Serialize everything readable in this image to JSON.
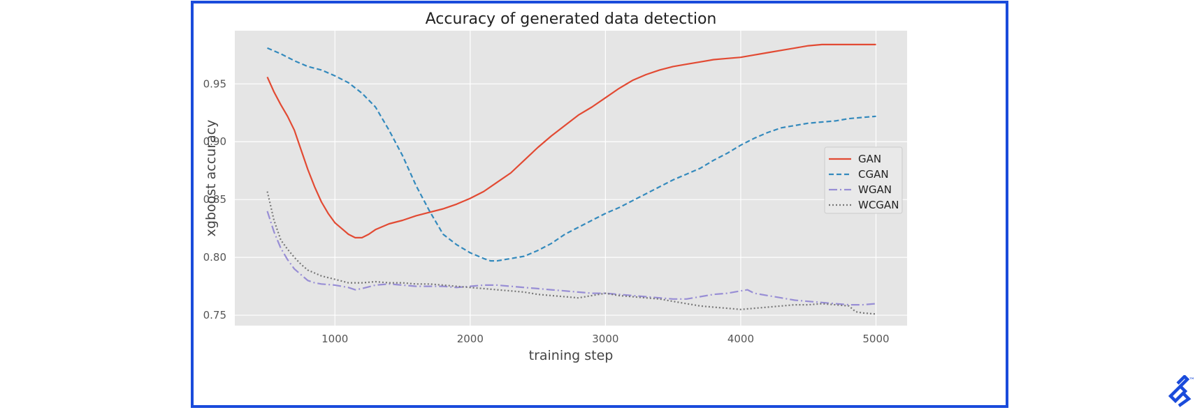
{
  "chart_data": {
    "type": "line",
    "title": "Accuracy of generated data detection",
    "xlabel": "training step",
    "ylabel": "xgboost accuracy",
    "xlim": [
      260,
      5230
    ],
    "ylim": [
      0.741,
      0.996
    ],
    "xticks": [
      1000,
      2000,
      3000,
      4000,
      5000
    ],
    "yticks": [
      0.75,
      0.8,
      0.85,
      0.9,
      0.95
    ],
    "ytick_labels": [
      "0.75",
      "0.80",
      "0.85",
      "0.90",
      "0.95"
    ],
    "grid": true,
    "legend_position": "center-right",
    "series": [
      {
        "name": "GAN",
        "color": "#e24a33",
        "style": "solid",
        "x": [
          500,
          550,
          600,
          650,
          700,
          750,
          800,
          850,
          900,
          950,
          1000,
          1050,
          1100,
          1150,
          1200,
          1250,
          1300,
          1400,
          1500,
          1600,
          1700,
          1800,
          1900,
          2000,
          2100,
          2200,
          2300,
          2400,
          2500,
          2600,
          2700,
          2800,
          2900,
          3000,
          3100,
          3200,
          3300,
          3400,
          3500,
          3600,
          3700,
          3800,
          3900,
          4000,
          4100,
          4200,
          4300,
          4400,
          4500,
          4600,
          4700,
          4800,
          4900,
          5000
        ],
        "y": [
          0.956,
          0.943,
          0.932,
          0.922,
          0.91,
          0.893,
          0.876,
          0.861,
          0.848,
          0.838,
          0.83,
          0.825,
          0.82,
          0.817,
          0.817,
          0.82,
          0.824,
          0.829,
          0.832,
          0.836,
          0.839,
          0.842,
          0.846,
          0.851,
          0.857,
          0.865,
          0.873,
          0.884,
          0.895,
          0.905,
          0.914,
          0.923,
          0.93,
          0.938,
          0.946,
          0.953,
          0.958,
          0.962,
          0.965,
          0.967,
          0.969,
          0.971,
          0.972,
          0.973,
          0.975,
          0.977,
          0.979,
          0.981,
          0.983,
          0.984,
          0.984,
          0.984,
          0.984,
          0.984
        ]
      },
      {
        "name": "CGAN",
        "color": "#348abd",
        "style": "dashed",
        "x": [
          500,
          600,
          700,
          800,
          900,
          1000,
          1100,
          1200,
          1300,
          1400,
          1500,
          1600,
          1700,
          1800,
          1900,
          2000,
          2100,
          2150,
          2200,
          2300,
          2400,
          2500,
          2600,
          2700,
          2800,
          2900,
          3000,
          3100,
          3200,
          3300,
          3400,
          3500,
          3600,
          3700,
          3800,
          3900,
          4000,
          4100,
          4200,
          4300,
          4400,
          4500,
          4600,
          4700,
          4800,
          4900,
          5000
        ],
        "y": [
          0.981,
          0.976,
          0.97,
          0.965,
          0.962,
          0.957,
          0.951,
          0.942,
          0.93,
          0.91,
          0.888,
          0.862,
          0.84,
          0.82,
          0.811,
          0.804,
          0.799,
          0.797,
          0.797,
          0.799,
          0.801,
          0.806,
          0.812,
          0.82,
          0.826,
          0.832,
          0.838,
          0.843,
          0.849,
          0.855,
          0.861,
          0.867,
          0.872,
          0.877,
          0.884,
          0.89,
          0.897,
          0.903,
          0.908,
          0.912,
          0.914,
          0.916,
          0.917,
          0.918,
          0.92,
          0.921,
          0.922
        ]
      },
      {
        "name": "WGAN",
        "color": "#988ed5",
        "style": "dashdot",
        "x": [
          500,
          550,
          600,
          650,
          700,
          750,
          800,
          850,
          900,
          1000,
          1100,
          1150,
          1200,
          1300,
          1400,
          1500,
          1600,
          1700,
          1800,
          1900,
          2000,
          2100,
          2200,
          2300,
          2400,
          2500,
          2600,
          2700,
          2800,
          2900,
          3000,
          3100,
          3200,
          3300,
          3400,
          3500,
          3600,
          3700,
          3800,
          3900,
          4000,
          4050,
          4100,
          4200,
          4300,
          4400,
          4500,
          4600,
          4700,
          4800,
          4900,
          5000
        ],
        "y": [
          0.84,
          0.822,
          0.808,
          0.798,
          0.79,
          0.785,
          0.78,
          0.778,
          0.777,
          0.776,
          0.774,
          0.772,
          0.773,
          0.776,
          0.777,
          0.776,
          0.775,
          0.775,
          0.775,
          0.774,
          0.775,
          0.776,
          0.776,
          0.775,
          0.774,
          0.773,
          0.772,
          0.771,
          0.77,
          0.769,
          0.769,
          0.768,
          0.767,
          0.766,
          0.765,
          0.764,
          0.764,
          0.766,
          0.768,
          0.769,
          0.771,
          0.772,
          0.769,
          0.767,
          0.765,
          0.763,
          0.762,
          0.761,
          0.76,
          0.759,
          0.759,
          0.76
        ]
      },
      {
        "name": "WCGAN",
        "color": "#777777",
        "style": "dotted",
        "x": [
          500,
          550,
          600,
          650,
          700,
          750,
          800,
          900,
          1000,
          1100,
          1200,
          1300,
          1400,
          1500,
          1600,
          1700,
          1800,
          1900,
          2000,
          2100,
          2200,
          2300,
          2400,
          2500,
          2600,
          2700,
          2800,
          2900,
          3000,
          3100,
          3200,
          3300,
          3400,
          3500,
          3600,
          3700,
          3800,
          3900,
          4000,
          4100,
          4200,
          4300,
          4400,
          4500,
          4600,
          4700,
          4800,
          4850,
          4900,
          5000
        ],
        "y": [
          0.857,
          0.832,
          0.815,
          0.807,
          0.8,
          0.794,
          0.789,
          0.784,
          0.781,
          0.778,
          0.778,
          0.779,
          0.778,
          0.778,
          0.777,
          0.777,
          0.776,
          0.775,
          0.774,
          0.773,
          0.772,
          0.771,
          0.77,
          0.768,
          0.767,
          0.766,
          0.765,
          0.767,
          0.769,
          0.767,
          0.766,
          0.765,
          0.764,
          0.762,
          0.76,
          0.758,
          0.757,
          0.756,
          0.755,
          0.756,
          0.757,
          0.758,
          0.759,
          0.759,
          0.76,
          0.759,
          0.758,
          0.753,
          0.752,
          0.751
        ]
      }
    ]
  }
}
